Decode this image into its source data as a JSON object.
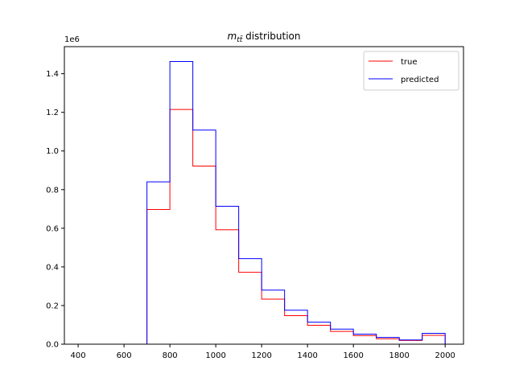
{
  "chart_data": {
    "type": "histogram",
    "title_var": "m",
    "title_sub": "tt̄",
    "title_rest": " distribution",
    "xlabel": "",
    "ylabel": "",
    "scale_label": "1e6",
    "bin_edges": [
      400,
      500,
      600,
      700,
      800,
      900,
      1000,
      1100,
      1200,
      1300,
      1400,
      1500,
      1600,
      1700,
      1800,
      1900,
      2000
    ],
    "xlim": [
      340,
      2080
    ],
    "ylim": [
      0,
      1.54
    ],
    "xticks": [
      400,
      600,
      800,
      1000,
      1200,
      1400,
      1600,
      1800,
      2000
    ],
    "yticks": [
      0.0,
      0.2,
      0.4,
      0.6,
      0.8,
      1.0,
      1.2,
      1.4
    ],
    "yticks_labels": [
      "0.0",
      "0.2",
      "0.4",
      "0.6",
      "0.8",
      "1.0",
      "1.2",
      "1.4"
    ],
    "series": [
      {
        "name": "true",
        "color": "#ff0000",
        "values": [
          0,
          0,
          0,
          0.697,
          1.215,
          0.922,
          0.592,
          0.372,
          0.233,
          0.148,
          0.098,
          0.066,
          0.044,
          0.028,
          0.019,
          0.046
        ]
      },
      {
        "name": "predicted",
        "color": "#0000ff",
        "values": [
          0,
          0,
          0,
          0.84,
          1.463,
          1.108,
          0.714,
          0.443,
          0.28,
          0.176,
          0.114,
          0.078,
          0.052,
          0.035,
          0.022,
          0.056
        ]
      }
    ],
    "legend_position": "top-right",
    "grid": false
  }
}
